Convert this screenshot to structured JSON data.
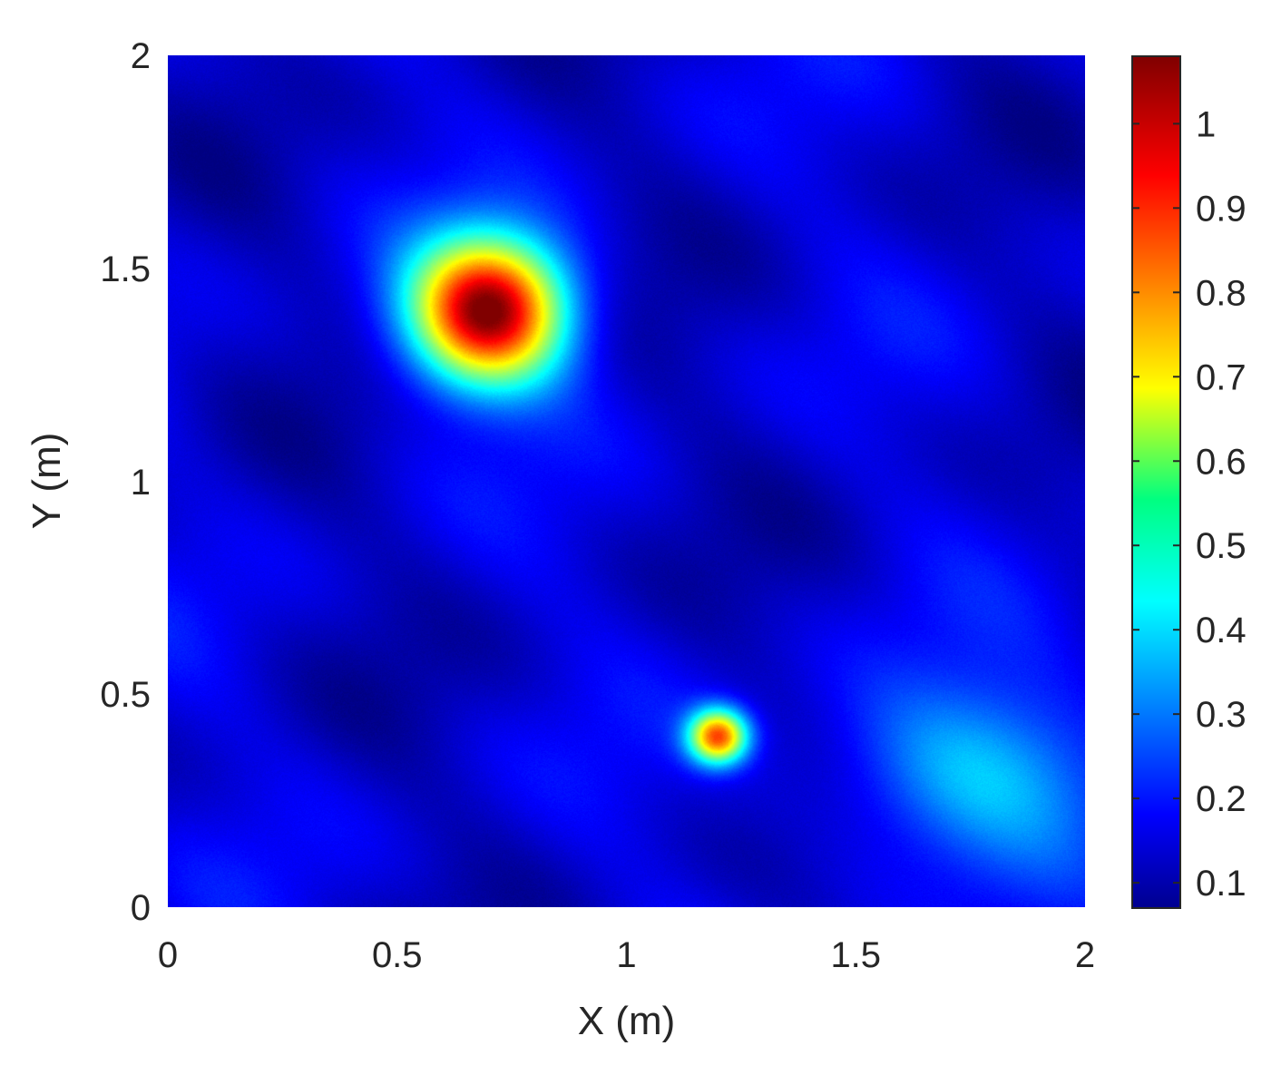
{
  "chart_data": {
    "type": "heatmap",
    "xlabel": "X (m)",
    "ylabel": "Y (m)",
    "xlim": [
      0,
      2
    ],
    "ylim": [
      0,
      2
    ],
    "x_ticks": [
      "0",
      "0.5",
      "1",
      "1.5",
      "2"
    ],
    "x_tick_values": [
      0,
      0.5,
      1,
      1.5,
      2
    ],
    "y_ticks": [
      "0",
      "0.5",
      "1",
      "1.5",
      "2"
    ],
    "y_tick_values": [
      0,
      0.5,
      1,
      1.5,
      2
    ],
    "colormap": "jet",
    "colorbar": {
      "range": [
        0.07,
        1.08
      ],
      "ticks": [
        "0.1",
        "0.2",
        "0.3",
        "0.4",
        "0.5",
        "0.6",
        "0.7",
        "0.8",
        "0.9",
        "1"
      ],
      "tick_values": [
        0.1,
        0.2,
        0.3,
        0.4,
        0.5,
        0.6,
        0.7,
        0.8,
        0.9,
        1.0
      ],
      "placement": "right"
    },
    "background_level": 0.15,
    "hotspots": [
      {
        "x": 0.7,
        "y": 1.4,
        "peak": 1.08,
        "sigma": 0.12
      },
      {
        "x": 1.2,
        "y": 0.4,
        "peak": 0.85,
        "sigma": 0.045
      },
      {
        "x": 1.75,
        "y": 0.32,
        "peak": 0.38,
        "sigma_x": 0.22,
        "sigma_y": 0.15
      }
    ],
    "grid": false
  }
}
